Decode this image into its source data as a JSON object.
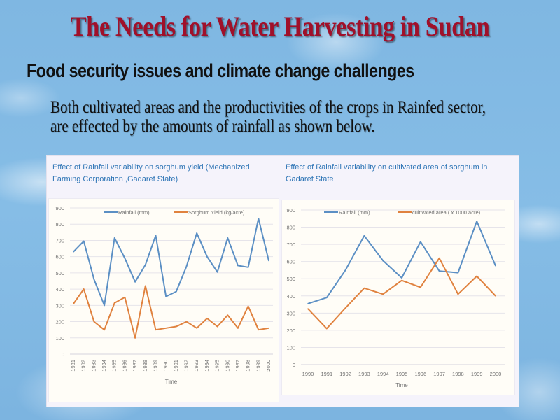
{
  "slide": {
    "title": "The Needs for Water Harvesting in Sudan",
    "subtitle": "Food security issues and climate change challenges",
    "body_line1": "Both cultivated areas and the productivities of the crops in Rainfed sector,",
    "body_line2": "are effected by the amounts of rainfall as shown below."
  },
  "colors": {
    "rainfall": "#5b8fc4",
    "orange": "#e0823f",
    "title": "#a0102a",
    "chart_title": "#2e75b6"
  },
  "chart_data": [
    {
      "type": "line",
      "title_line1": "Effect of Rainfall variability on sorghum yield (Mechanized",
      "title_line2": "Farming Corporation ,Gadaref State)",
      "xlabel": "Time",
      "ylabel": "",
      "ylim": [
        0,
        900
      ],
      "yticks": [
        0,
        100,
        200,
        300,
        400,
        500,
        600,
        700,
        800,
        900
      ],
      "grid": true,
      "legend_position": "top",
      "categories": [
        "1981",
        "1982",
        "1983",
        "1984",
        "1985",
        "1986",
        "1987",
        "1988",
        "1989",
        "1990",
        "1991",
        "1992",
        "1993",
        "1994",
        "1995",
        "1996",
        "1997",
        "1998",
        "1999",
        "2000"
      ],
      "series": [
        {
          "name": "Rainfall (mm)",
          "values": [
            630,
            695,
            460,
            300,
            715,
            590,
            445,
            550,
            730,
            355,
            385,
            540,
            745,
            600,
            505,
            715,
            545,
            535,
            835,
            575
          ]
        },
        {
          "name": "Sorghum Yield (kg/acre)",
          "values": [
            310,
            400,
            200,
            150,
            315,
            350,
            100,
            420,
            150,
            160,
            170,
            200,
            160,
            220,
            170,
            240,
            160,
            295,
            150,
            160
          ]
        }
      ]
    },
    {
      "type": "line",
      "title_line1": "Effect of Rainfall variability on cultivated area of sorghum in",
      "title_line2": "Gadaref State",
      "xlabel": "Time",
      "ylabel": "",
      "ylim": [
        0,
        900
      ],
      "yticks": [
        0,
        100,
        200,
        300,
        400,
        500,
        600,
        700,
        800,
        900
      ],
      "grid": true,
      "legend_position": "top",
      "categories": [
        "1990",
        "1991",
        "1992",
        "1993",
        "1994",
        "1995",
        "1996",
        "1997",
        "1998",
        "1999",
        "2000"
      ],
      "series": [
        {
          "name": "Rainfall (mm)",
          "values": [
            355,
            390,
            550,
            750,
            605,
            505,
            715,
            545,
            535,
            835,
            575
          ]
        },
        {
          "name": "cultivated area ( x 1000 acre)",
          "values": [
            325,
            210,
            330,
            445,
            410,
            490,
            450,
            620,
            410,
            515,
            400
          ]
        }
      ]
    }
  ]
}
